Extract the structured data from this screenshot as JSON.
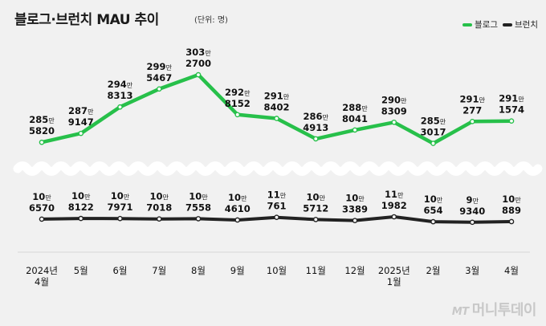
{
  "header": {
    "title": "블로그·브런치 MAU 추이",
    "unit": "(단위: 명)"
  },
  "legend": {
    "blog_label": "블로그",
    "brunch_label": "브런치"
  },
  "watermark": {
    "logo": "MT",
    "text": "머니투데이"
  },
  "colors": {
    "blog": "#27c04a",
    "brunch": "#222222",
    "background": "#f1f1f1"
  },
  "chart_data": {
    "type": "line",
    "title": "블로그·브런치 MAU 추이",
    "unit": "명",
    "categories": [
      [
        "2024년",
        "4월"
      ],
      [
        "5월"
      ],
      [
        "6월"
      ],
      [
        "7월"
      ],
      [
        "8월"
      ],
      [
        "9월"
      ],
      [
        "10월"
      ],
      [
        "11월"
      ],
      [
        "12월"
      ],
      [
        "2025년",
        "1월"
      ],
      [
        "2월"
      ],
      [
        "3월"
      ],
      [
        "4월"
      ]
    ],
    "series": [
      {
        "name": "블로그",
        "values": [
          2855820,
          2879147,
          2948313,
          2995467,
          3032700,
          2928152,
          2918402,
          2864913,
          2888041,
          2908309,
          2853017,
          2910277,
          2911574
        ],
        "labels": [
          [
            "285만",
            "5820"
          ],
          [
            "287만",
            "9147"
          ],
          [
            "294만",
            "8313"
          ],
          [
            "299만",
            "5467"
          ],
          [
            "303만",
            "2700"
          ],
          [
            "292만",
            "8152"
          ],
          [
            "291만",
            "8402"
          ],
          [
            "286만",
            "4913"
          ],
          [
            "288만",
            "8041"
          ],
          [
            "290만",
            "8309"
          ],
          [
            "285만",
            "3017"
          ],
          [
            "291만",
            "277"
          ],
          [
            "291만",
            "1574"
          ]
        ]
      },
      {
        "name": "브런치",
        "values": [
          106570,
          108122,
          107971,
          107018,
          107558,
          104610,
          110761,
          105712,
          103389,
          111982,
          100654,
          99340,
          100889
        ],
        "labels": [
          [
            "10만",
            "6570"
          ],
          [
            "10만",
            "8122"
          ],
          [
            "10만",
            "7971"
          ],
          [
            "10만",
            "7018"
          ],
          [
            "10만",
            "7558"
          ],
          [
            "10만",
            "4610"
          ],
          [
            "11만",
            "761"
          ],
          [
            "10만",
            "5712"
          ],
          [
            "10만",
            "3389"
          ],
          [
            "11만",
            "1982"
          ],
          [
            "10만",
            "654"
          ],
          [
            "9만",
            "9340"
          ],
          [
            "10만",
            "889"
          ]
        ]
      }
    ],
    "axis_break": true
  }
}
